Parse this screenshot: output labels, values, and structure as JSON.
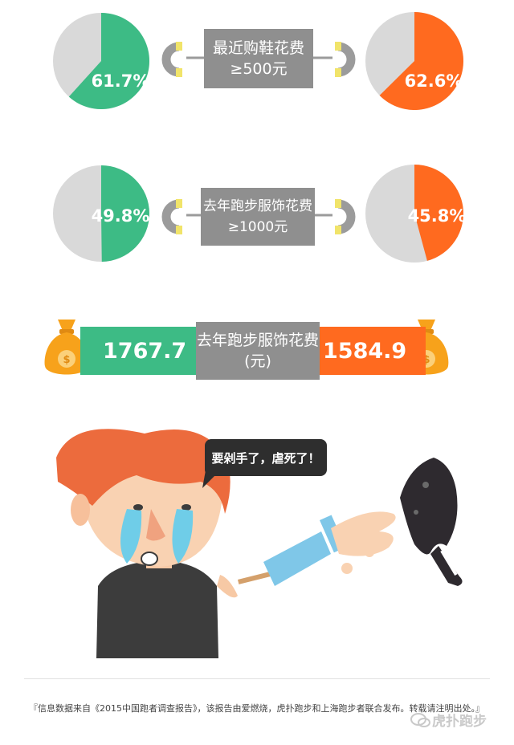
{
  "chart_data": [
    {
      "type": "pie",
      "title": "最近购鞋花费 ≥500元",
      "series": [
        {
          "values": [
            61.7,
            38.3
          ],
          "labels": [
            "61.7%",
            ""
          ],
          "colors": [
            "#3dbb85",
            "#d9d9d9"
          ]
        },
        {
          "values": [
            62.6,
            37.4
          ],
          "labels": [
            "62.6%",
            ""
          ],
          "colors": [
            "#ff6a1f",
            "#d9d9d9"
          ]
        }
      ]
    },
    {
      "type": "pie",
      "title": "去年跑步服饰花费 ≥1000元",
      "series": [
        {
          "values": [
            49.8,
            50.2
          ],
          "labels": [
            "49.8%",
            ""
          ],
          "colors": [
            "#3dbb85",
            "#d9d9d9"
          ]
        },
        {
          "values": [
            45.8,
            54.2
          ],
          "labels": [
            "45.8%",
            ""
          ],
          "colors": [
            "#ff6a1f",
            "#d9d9d9"
          ]
        }
      ]
    },
    {
      "type": "bar",
      "title": "去年跑步服饰花费 (元)",
      "categories": [
        "",
        ""
      ],
      "values": [
        1767.7,
        1584.9
      ],
      "labels": [
        "1767.7",
        "1584.9"
      ],
      "colors": [
        "#3dbb85",
        "#ff6a1f"
      ]
    }
  ],
  "labels": {
    "box1_line1": "最近购鞋花费",
    "box1_line2": "≥500元",
    "box2_line1": "去年跑步服饰花费",
    "box2_line2": "≥1000元",
    "box3_line1": "去年跑步服饰花费",
    "box3_line2": "(元)",
    "speech": "要剁手了，虐死了！",
    "footer": "『信息数据来自《2015中国跑者调查报告》，该报告由爱燃烧，虎扑跑步和上海跑步者联合发布。转载请注明出处。』",
    "watermark": "虎扑跑步"
  },
  "colors": {
    "green": "#3dbb85",
    "orange": "#ff6a1f",
    "gray_box": "#8f8f8f",
    "pie_gray": "#d9d9d9",
    "magnet_yellow": "#f1e46a"
  },
  "icons": [
    "magnet-icon",
    "money-bag-icon",
    "dollar-coin-icon",
    "crying-boy-illustration",
    "knife-icon",
    "severed-hand-icon",
    "wechat-logo-icon"
  ]
}
